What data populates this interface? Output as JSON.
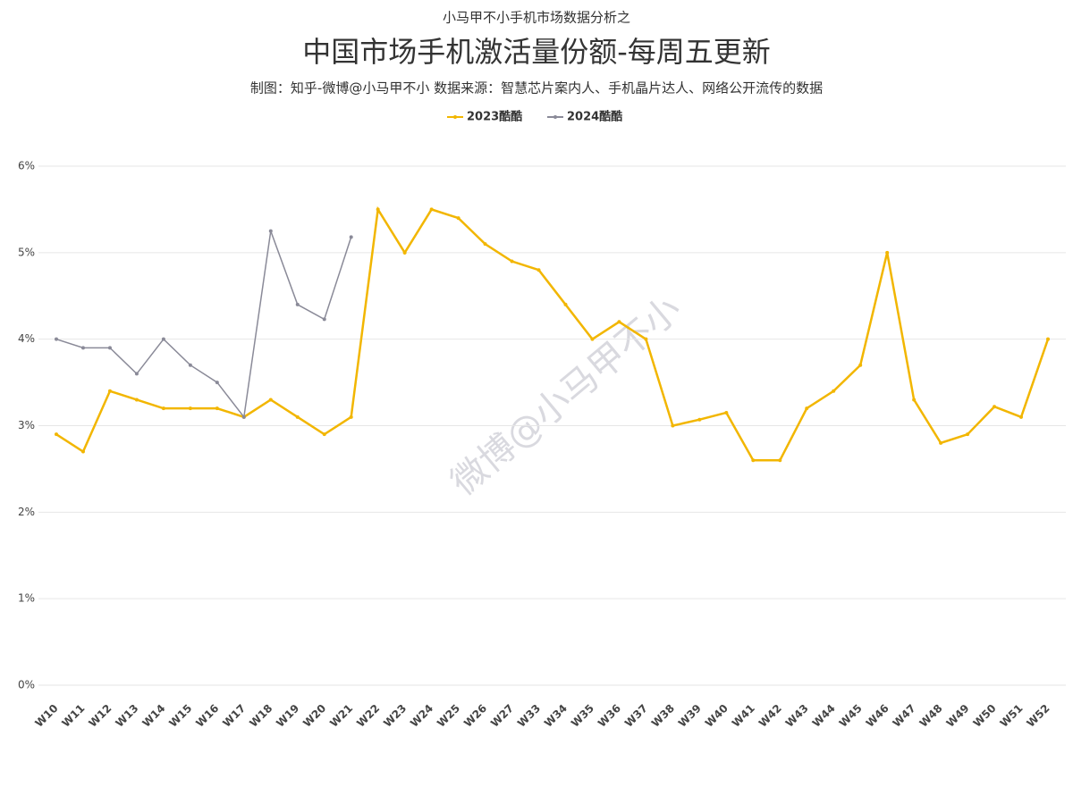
{
  "chart_data": {
    "type": "line",
    "supertitle": "小马甲不小手机市场数据分析之",
    "title": "中国市场手机激活量份额-每周五更新",
    "subtitle": "制图：知乎-微博@小马甲不小  数据来源：智慧芯片案内人、手机晶片达人、网络公开流传的数据",
    "watermark": "微博@小马甲不小",
    "categories": [
      "W10",
      "W11",
      "W12",
      "W13",
      "W14",
      "W15",
      "W16",
      "W17",
      "W18",
      "W19",
      "W20",
      "W21",
      "W22",
      "W23",
      "W24",
      "W25",
      "W26",
      "W27",
      "W33",
      "W34",
      "W35",
      "W36",
      "W37",
      "W38",
      "W39",
      "W40",
      "W41",
      "W42",
      "W43",
      "W44",
      "W45",
      "W46",
      "W47",
      "W48",
      "W49",
      "W50",
      "W51",
      "W52"
    ],
    "series": [
      {
        "name": "2023酷酷",
        "color": "#f2b600",
        "values": [
          2.9,
          2.7,
          3.4,
          3.3,
          3.2,
          3.2,
          3.2,
          3.1,
          3.3,
          3.1,
          2.9,
          3.1,
          5.5,
          5.0,
          5.5,
          5.4,
          5.1,
          4.9,
          4.8,
          4.4,
          4.0,
          4.2,
          4.0,
          3.0,
          3.07,
          3.15,
          2.6,
          2.6,
          3.2,
          3.4,
          3.7,
          5.0,
          3.3,
          2.8,
          2.9,
          3.22,
          3.1,
          4.0
        ]
      },
      {
        "name": "2024酷酷",
        "color": "#8a8a98",
        "values": [
          4.0,
          3.9,
          3.9,
          3.6,
          4.0,
          3.7,
          3.5,
          3.1,
          5.25,
          4.4,
          4.23,
          5.18,
          null,
          null,
          null,
          null,
          null,
          null,
          null,
          null,
          null,
          null,
          null,
          null,
          null,
          null,
          null,
          null,
          null,
          null,
          null,
          null,
          null,
          null,
          null,
          null,
          null,
          null
        ]
      }
    ],
    "ylim": [
      0,
      6
    ],
    "yticks": [
      {
        "value": 0,
        "label": "0%"
      },
      {
        "value": 1,
        "label": "1%"
      },
      {
        "value": 2,
        "label": "2%"
      },
      {
        "value": 3,
        "label": "3%"
      },
      {
        "value": 4,
        "label": "4%"
      },
      {
        "value": 5,
        "label": "5%"
      },
      {
        "value": 6,
        "label": "6%"
      }
    ],
    "grid": true,
    "legend": "top"
  }
}
